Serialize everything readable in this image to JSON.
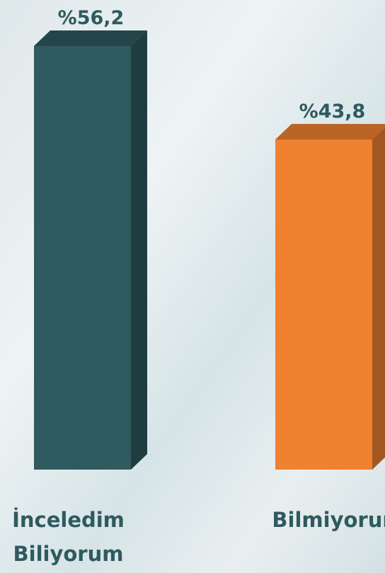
{
  "chart_data": {
    "type": "bar3d",
    "categories": [
      "İnceledim\nBiliyorum",
      "Bilmiyorum"
    ],
    "values": [
      56.2,
      43.8
    ],
    "value_labels": [
      "%56,2",
      "%43,8"
    ],
    "colors": [
      "#2f5a5f",
      "#ef8131"
    ]
  }
}
